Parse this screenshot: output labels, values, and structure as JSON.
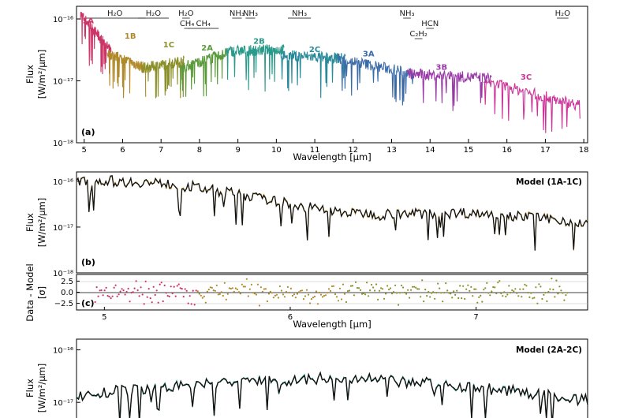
{
  "chart_data": [
    {
      "panel": "a",
      "panel_label": "(a)",
      "type": "line",
      "xlabel": "Wavelength [μm]",
      "ylabel_line1": "Flux",
      "ylabel_line2": "[W/m²/μm]",
      "xlim": [
        4.8,
        18.1
      ],
      "ylim": [
        1e-18,
        1.6e-16
      ],
      "yscale": "log",
      "x_ticks": [
        "5",
        "6",
        "7",
        "8",
        "9",
        "10",
        "11",
        "12",
        "13",
        "14",
        "15",
        "16",
        "17",
        "18"
      ],
      "y_ticks": [
        {
          "label": "10⁻¹⁶",
          "value": 1e-16
        },
        {
          "label": "10⁻¹⁷",
          "value": 1e-17
        },
        {
          "label": "10⁻¹⁸",
          "value": 1e-18
        }
      ],
      "segments": [
        {
          "label": "1A",
          "color": "#cc3366",
          "x": [
            4.9,
            5.7
          ],
          "flux": [
            1.2e-16,
            3e-17
          ],
          "label_x": 5.1,
          "label_flux": 8.5e-17
        },
        {
          "label": "1B",
          "color": "#b08a2a",
          "x": [
            5.6,
            6.6
          ],
          "flux": [
            2.8e-17,
            1.6e-17
          ],
          "label_x": 6.2,
          "label_flux": 4.8e-17
        },
        {
          "label": "1C",
          "color": "#8a8f2a",
          "x": [
            6.5,
            7.6
          ],
          "flux": [
            1.6e-17,
            2.1e-17
          ],
          "label_x": 7.2,
          "label_flux": 3.5e-17
        },
        {
          "label": "2A",
          "color": "#5a9a3a",
          "x": [
            7.5,
            8.7
          ],
          "flux": [
            1.6e-17,
            2.8e-17
          ],
          "label_x": 8.2,
          "label_flux": 3.1e-17
        },
        {
          "label": "2B",
          "color": "#2a9a8a",
          "x": [
            8.7,
            10.2
          ],
          "flux": [
            3e-17,
            3.2e-17
          ],
          "label_x": 9.55,
          "label_flux": 4e-17
        },
        {
          "label": "2C",
          "color": "#2a8a9a",
          "x": [
            10.1,
            11.8
          ],
          "flux": [
            2.6e-17,
            2.3e-17
          ],
          "label_x": 11.0,
          "label_flux": 2.9e-17
        },
        {
          "label": "3A",
          "color": "#3a6aa8",
          "x": [
            11.6,
            13.6
          ],
          "flux": [
            2.3e-17,
            1.3e-17
          ],
          "label_x": 12.4,
          "label_flux": 2.5e-17
        },
        {
          "label": "3B",
          "color": "#9a3aa8",
          "x": [
            13.4,
            15.6
          ],
          "flux": [
            1.3e-17,
            1.1e-17
          ],
          "label_x": 14.3,
          "label_flux": 1.5e-17
        },
        {
          "label": "3C",
          "color": "#cc3399",
          "x": [
            15.4,
            17.9
          ],
          "flux": [
            1e-17,
            4e-18
          ],
          "label_x": 16.5,
          "label_flux": 1.05e-17
        }
      ],
      "molecules": [
        {
          "label": "H₂O",
          "x": [
            5.0,
            6.6
          ]
        },
        {
          "label": "H₂O",
          "x": [
            6.4,
            7.2
          ]
        },
        {
          "label": "H₂O",
          "x": [
            7.55,
            7.75
          ]
        },
        {
          "label": "CH₄",
          "x": [
            7.6,
            7.75
          ]
        },
        {
          "label": "CH₄",
          "x": [
            7.7,
            8.5
          ]
        },
        {
          "label": "NH₃",
          "x": [
            8.85,
            9.1
          ]
        },
        {
          "label": "NH₃",
          "x": [
            9.2,
            9.45
          ]
        },
        {
          "label": "NH₃",
          "x": [
            10.3,
            10.9
          ]
        },
        {
          "label": "NH₃",
          "x": [
            13.3,
            13.5
          ]
        },
        {
          "label": "HCN",
          "x": [
            13.9,
            14.1
          ]
        },
        {
          "label": "C₂H₂",
          "x": [
            13.6,
            13.8
          ]
        },
        {
          "label": "H₂O",
          "x": [
            17.3,
            17.6
          ]
        }
      ]
    },
    {
      "panel": "b",
      "panel_label": "(b)",
      "type": "line",
      "model_label": "Model (1A-1C)",
      "ylabel_line1": "Flux",
      "ylabel_line2": "[W/m²/μm]",
      "xlim": [
        4.85,
        7.6
      ],
      "ylim": [
        1e-18,
        1.6e-16
      ],
      "yscale": "log",
      "y_ticks": [
        {
          "label": "10⁻¹⁶",
          "value": 1e-16
        },
        {
          "label": "10⁻¹⁷",
          "value": 1e-17
        },
        {
          "label": "10⁻¹⁸",
          "value": 1e-18
        }
      ]
    },
    {
      "panel": "c",
      "panel_label": "(c)",
      "type": "scatter",
      "xlabel": "Wavelength [μm]",
      "ylabel_line1": "Data - Model",
      "ylabel_line2": "[σ]",
      "xlim": [
        4.85,
        7.6
      ],
      "ylim": [
        -4,
        4
      ],
      "x_ticks": [
        "5",
        "6",
        "7"
      ],
      "y_ticks": [
        "2.5",
        "0.0",
        "−2.5"
      ]
    },
    {
      "panel": "d",
      "type": "line",
      "model_label": "Model (2A-2C)",
      "ylabel_line1": "Flux",
      "ylabel_line2": "[W/m²/μm]",
      "xlim": [
        7.5,
        11.8
      ],
      "ylim": [
        3e-18,
        1.6e-16
      ],
      "yscale": "log",
      "y_ticks": [
        {
          "label": "10⁻¹⁶",
          "value": 1e-16
        },
        {
          "label": "10⁻¹⁷",
          "value": 1e-17
        }
      ]
    }
  ]
}
